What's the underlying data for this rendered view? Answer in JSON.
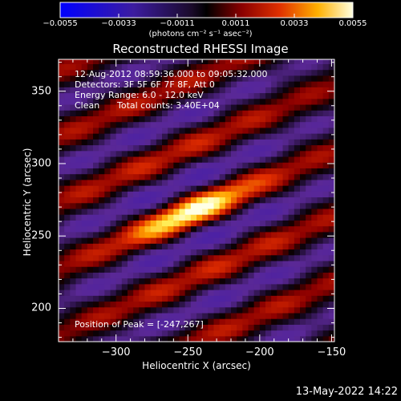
{
  "chart_data": {
    "type": "heatmap",
    "title": "Reconstructed RHESSI Image",
    "xlabel": "Heliocentric X (arcsec)",
    "ylabel": "Heliocentric Y (arcsec)",
    "xlim": [
      -340,
      -148
    ],
    "ylim": [
      177,
      372
    ],
    "x_ticks": [
      -300,
      -250,
      -200,
      -150
    ],
    "y_ticks": [
      200,
      250,
      300,
      350
    ],
    "colorbar": {
      "min": -0.0055,
      "max": 0.0055,
      "ticks": [
        "-0.0055",
        "-0.0033",
        "-0.0011",
        "0.0011",
        "0.0033",
        "0.0055"
      ],
      "units": "(photons cm⁻² s⁻¹ asec⁻²)"
    },
    "annotations": {
      "time_range": "12-Aug-2012 08:59:36.000 to 09:05:32.000",
      "detectors": "Detectors: 3F 5F 6F 7F 8F, Att 0",
      "energy_range": "Energy Range: 6.0 - 12.0 keV",
      "algorithm": "Clean",
      "total_counts": "Total counts: 3.40E+04",
      "peak_position": "Position of Peak = [-247,267]"
    },
    "peak": {
      "x": -247,
      "y": 267,
      "value": 0.0055
    },
    "stripe_model": {
      "slope_deg": 23,
      "period_arcsec": 42,
      "main_ridge_y_at_peak": 267
    }
  },
  "footer": {
    "timestamp": "13-May-2022 14:22"
  }
}
